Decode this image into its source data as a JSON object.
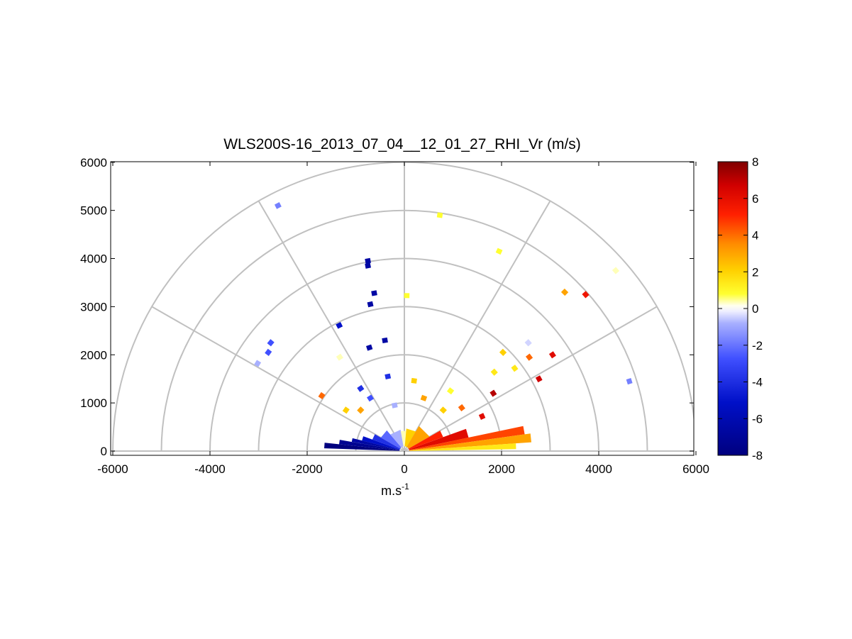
{
  "chart_data": {
    "type": "polar-rhi-scatter",
    "title": "WLS200S-16_2013_07_04__12_01_27_RHI_Vr (m/s)",
    "xlabel": "m.s",
    "xlabel_superscript": "-1",
    "xlim": [
      -6000,
      6000
    ],
    "ylim": [
      0,
      6000
    ],
    "x_ticks": [
      "-6000",
      "-4000",
      "-2000",
      "0",
      "2000",
      "4000",
      "6000"
    ],
    "y_ticks": [
      "0",
      "1000",
      "2000",
      "3000",
      "4000",
      "5000",
      "6000"
    ],
    "polar_grid": {
      "rings": [
        1000,
        2000,
        3000,
        4000,
        5000,
        6000
      ],
      "spokes_deg": [
        0,
        30,
        60,
        90,
        120,
        150,
        180
      ]
    },
    "colorbar": {
      "range": [
        -8,
        8
      ],
      "ticks": [
        "-8",
        "-6",
        "-4",
        "-2",
        "0",
        "2",
        "4",
        "6",
        "8"
      ]
    },
    "range_gates": [
      {
        "x": -2600,
        "y": 5100,
        "v": -3
      },
      {
        "x": 730,
        "y": 4900,
        "v": 1
      },
      {
        "x": 1950,
        "y": 4150,
        "v": 1
      },
      {
        "x": 4350,
        "y": 3750,
        "v": 0.5
      },
      {
        "x": -750,
        "y": 3950,
        "v": -7
      },
      {
        "x": -750,
        "y": 3850,
        "v": -7
      },
      {
        "x": -620,
        "y": 3280,
        "v": -7
      },
      {
        "x": -700,
        "y": 3050,
        "v": -7
      },
      {
        "x": 50,
        "y": 3230,
        "v": 1
      },
      {
        "x": 3300,
        "y": 3300,
        "v": 3
      },
      {
        "x": 3730,
        "y": 3250,
        "v": 5.5
      },
      {
        "x": -1340,
        "y": 2610,
        "v": -6
      },
      {
        "x": -400,
        "y": 2300,
        "v": -7
      },
      {
        "x": -720,
        "y": 2150,
        "v": -7
      },
      {
        "x": -2750,
        "y": 2250,
        "v": -4
      },
      {
        "x": -2800,
        "y": 2050,
        "v": -4
      },
      {
        "x": -3020,
        "y": 1820,
        "v": -2
      },
      {
        "x": -1330,
        "y": 1950,
        "v": 0.5
      },
      {
        "x": 2550,
        "y": 2250,
        "v": -1
      },
      {
        "x": 2030,
        "y": 2050,
        "v": 2
      },
      {
        "x": 2270,
        "y": 1720,
        "v": 1.5
      },
      {
        "x": 1850,
        "y": 1640,
        "v": 1.5
      },
      {
        "x": 2570,
        "y": 1950,
        "v": 4
      },
      {
        "x": 3050,
        "y": 2000,
        "v": 6
      },
      {
        "x": 2770,
        "y": 1500,
        "v": 6.5
      },
      {
        "x": 4630,
        "y": 1450,
        "v": -3
      },
      {
        "x": 1830,
        "y": 1200,
        "v": 7
      },
      {
        "x": -1700,
        "y": 1150,
        "v": 4
      },
      {
        "x": -340,
        "y": 1550,
        "v": -5
      },
      {
        "x": -900,
        "y": 1300,
        "v": -5
      },
      {
        "x": 200,
        "y": 1460,
        "v": 2
      },
      {
        "x": 400,
        "y": 1100,
        "v": 3
      },
      {
        "x": 950,
        "y": 1250,
        "v": 1
      },
      {
        "x": 1180,
        "y": 900,
        "v": 4
      },
      {
        "x": -700,
        "y": 1100,
        "v": -4
      },
      {
        "x": -200,
        "y": 950,
        "v": -2
      },
      {
        "x": 800,
        "y": 850,
        "v": 2
      },
      {
        "x": 1600,
        "y": 720,
        "v": 6
      },
      {
        "x": -1200,
        "y": 850,
        "v": 2
      },
      {
        "x": -900,
        "y": 850,
        "v": 3
      }
    ],
    "near_field_sectors": [
      {
        "a0": 174,
        "a1": 178,
        "r0": 100,
        "r1": 1650,
        "v": -8
      },
      {
        "a0": 170,
        "a1": 174,
        "r0": 100,
        "r1": 1350,
        "v": -7.5
      },
      {
        "a0": 166,
        "a1": 170,
        "r0": 100,
        "r1": 1100,
        "v": -7
      },
      {
        "a0": 160,
        "a1": 166,
        "r0": 100,
        "r1": 900,
        "v": -6
      },
      {
        "a0": 150,
        "a1": 160,
        "r0": 100,
        "r1": 700,
        "v": -5
      },
      {
        "a0": 130,
        "a1": 150,
        "r0": 100,
        "r1": 560,
        "v": -3.5
      },
      {
        "a0": 100,
        "a1": 130,
        "r0": 100,
        "r1": 450,
        "v": -2
      },
      {
        "a0": 85,
        "a1": 100,
        "r0": 100,
        "r1": 420,
        "v": 0.5
      },
      {
        "a0": 60,
        "a1": 85,
        "r0": 100,
        "r1": 470,
        "v": 2
      },
      {
        "a0": 30,
        "a1": 60,
        "r0": 100,
        "r1": 600,
        "v": 3
      },
      {
        "a0": 20,
        "a1": 30,
        "r0": 100,
        "r1": 850,
        "v": 5
      },
      {
        "a0": 12,
        "a1": 20,
        "r0": 100,
        "r1": 1350,
        "v": 6
      },
      {
        "a0": 8,
        "a1": 12,
        "r0": 100,
        "r1": 2500,
        "v": 4.5
      },
      {
        "a0": 4,
        "a1": 8,
        "r0": 100,
        "r1": 2620,
        "v": 3
      },
      {
        "a0": 1,
        "a1": 4,
        "r0": 100,
        "r1": 2300,
        "v": 1.5
      }
    ]
  }
}
